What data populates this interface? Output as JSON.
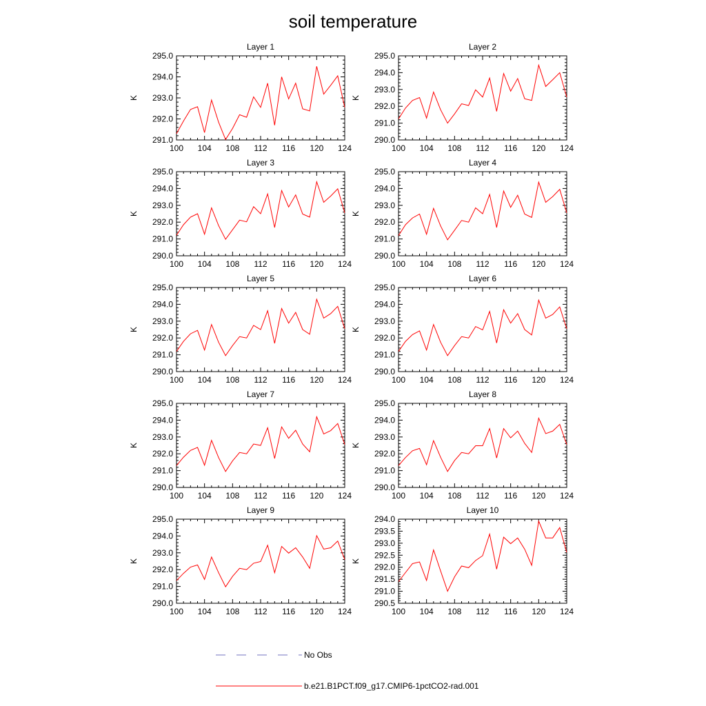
{
  "figure": {
    "title": "soil temperature"
  },
  "legend": [
    {
      "label": "No Obs",
      "color": "#7070c0",
      "style": "dashed"
    },
    {
      "label": "b.e21.B1PCT.f09_g17.CMIP6-1pctCO2-rad.001",
      "color": "#ff0000",
      "style": "solid"
    }
  ],
  "chart_data": [
    {
      "type": "line",
      "title": "Layer 1",
      "ylabel": "K",
      "xlim": [
        100,
        124
      ],
      "ylim": [
        291.0,
        295.0
      ],
      "xticks": [
        "100",
        "104",
        "108",
        "112",
        "116",
        "120",
        "124"
      ],
      "yticks": [
        "291.0",
        "292.0",
        "293.0",
        "294.0",
        "295.0"
      ],
      "x": [
        100,
        101,
        102,
        103,
        104,
        105,
        106,
        107,
        108,
        109,
        110,
        111,
        112,
        113,
        114,
        115,
        116,
        117,
        118,
        119,
        120,
        121,
        122,
        123,
        124
      ],
      "series": [
        {
          "name": "b.e21.B1PCT.f09_g17.CMIP6-1pctCO2-rad.001",
          "color": "#ff0000",
          "values": [
            291.3,
            291.9,
            292.45,
            292.58,
            291.35,
            292.9,
            291.85,
            291.02,
            291.55,
            292.2,
            292.08,
            293.05,
            292.55,
            293.7,
            291.7,
            294.0,
            292.95,
            293.7,
            292.48,
            292.38,
            294.5,
            293.18,
            293.6,
            294.05,
            292.55
          ]
        }
      ]
    },
    {
      "type": "line",
      "title": "Layer 2",
      "ylabel": "K",
      "xlim": [
        100,
        124
      ],
      "ylim": [
        290.0,
        295.0
      ],
      "xticks": [
        "100",
        "104",
        "108",
        "112",
        "116",
        "120",
        "124"
      ],
      "yticks": [
        "290.0",
        "291.0",
        "292.0",
        "293.0",
        "294.0",
        "295.0"
      ],
      "x": [
        100,
        101,
        102,
        103,
        104,
        105,
        106,
        107,
        108,
        109,
        110,
        111,
        112,
        113,
        114,
        115,
        116,
        117,
        118,
        119,
        120,
        121,
        122,
        123,
        124
      ],
      "series": [
        {
          "name": "b.e21.B1PCT.f09_g17.CMIP6-1pctCO2-rad.001",
          "color": "#ff0000",
          "values": [
            291.25,
            291.9,
            292.35,
            292.52,
            291.3,
            292.85,
            291.8,
            291.0,
            291.55,
            292.15,
            292.05,
            292.98,
            292.55,
            293.68,
            291.7,
            293.95,
            292.9,
            293.65,
            292.45,
            292.35,
            294.45,
            293.18,
            293.58,
            294.0,
            292.55
          ]
        }
      ]
    },
    {
      "type": "line",
      "title": "Layer 3",
      "ylabel": "K",
      "xlim": [
        100,
        124
      ],
      "ylim": [
        290.0,
        295.0
      ],
      "xticks": [
        "100",
        "104",
        "108",
        "112",
        "116",
        "120",
        "124"
      ],
      "yticks": [
        "290.0",
        "291.0",
        "292.0",
        "293.0",
        "294.0",
        "295.0"
      ],
      "x": [
        100,
        101,
        102,
        103,
        104,
        105,
        106,
        107,
        108,
        109,
        110,
        111,
        112,
        113,
        114,
        115,
        116,
        117,
        118,
        119,
        120,
        121,
        122,
        123,
        124
      ],
      "series": [
        {
          "name": "b.e21.B1PCT.f09_g17.CMIP6-1pctCO2-rad.001",
          "color": "#ff0000",
          "values": [
            291.22,
            291.85,
            292.3,
            292.5,
            291.28,
            292.85,
            291.8,
            290.98,
            291.55,
            292.12,
            292.02,
            292.92,
            292.5,
            293.68,
            291.68,
            293.88,
            292.9,
            293.62,
            292.48,
            292.3,
            294.4,
            293.18,
            293.55,
            293.98,
            292.55
          ]
        }
      ]
    },
    {
      "type": "line",
      "title": "Layer 4",
      "ylabel": "K",
      "xlim": [
        100,
        124
      ],
      "ylim": [
        290.0,
        295.0
      ],
      "xticks": [
        "100",
        "104",
        "108",
        "112",
        "116",
        "120",
        "124"
      ],
      "yticks": [
        "290.0",
        "291.0",
        "292.0",
        "293.0",
        "294.0",
        "295.0"
      ],
      "x": [
        100,
        101,
        102,
        103,
        104,
        105,
        106,
        107,
        108,
        109,
        110,
        111,
        112,
        113,
        114,
        115,
        116,
        117,
        118,
        119,
        120,
        121,
        122,
        123,
        124
      ],
      "series": [
        {
          "name": "b.e21.B1PCT.f09_g17.CMIP6-1pctCO2-rad.001",
          "color": "#ff0000",
          "values": [
            291.2,
            291.85,
            292.25,
            292.48,
            291.28,
            292.82,
            291.78,
            290.95,
            291.52,
            292.1,
            292.0,
            292.85,
            292.5,
            293.65,
            291.68,
            293.85,
            292.88,
            293.6,
            292.48,
            292.28,
            294.38,
            293.18,
            293.52,
            293.95,
            292.55
          ]
        }
      ]
    },
    {
      "type": "line",
      "title": "Layer 5",
      "ylabel": "K",
      "xlim": [
        100,
        124
      ],
      "ylim": [
        290.0,
        295.0
      ],
      "xticks": [
        "100",
        "104",
        "108",
        "112",
        "116",
        "120",
        "124"
      ],
      "yticks": [
        "290.0",
        "291.0",
        "292.0",
        "293.0",
        "294.0",
        "295.0"
      ],
      "x": [
        100,
        101,
        102,
        103,
        104,
        105,
        106,
        107,
        108,
        109,
        110,
        111,
        112,
        113,
        114,
        115,
        116,
        117,
        118,
        119,
        120,
        121,
        122,
        123,
        124
      ],
      "series": [
        {
          "name": "b.e21.B1PCT.f09_g17.CMIP6-1pctCO2-rad.001",
          "color": "#ff0000",
          "values": [
            291.2,
            291.8,
            292.25,
            292.45,
            291.28,
            292.8,
            291.75,
            290.95,
            291.55,
            292.08,
            292.0,
            292.75,
            292.5,
            293.62,
            291.68,
            293.75,
            292.88,
            293.52,
            292.5,
            292.22,
            294.3,
            293.18,
            293.45,
            293.88,
            292.55
          ]
        }
      ]
    },
    {
      "type": "line",
      "title": "Layer 6",
      "ylabel": "K",
      "xlim": [
        100,
        124
      ],
      "ylim": [
        290.0,
        295.0
      ],
      "xticks": [
        "100",
        "104",
        "108",
        "112",
        "116",
        "120",
        "124"
      ],
      "yticks": [
        "290.0",
        "291.0",
        "292.0",
        "293.0",
        "294.0",
        "295.0"
      ],
      "x": [
        100,
        101,
        102,
        103,
        104,
        105,
        106,
        107,
        108,
        109,
        110,
        111,
        112,
        113,
        114,
        115,
        116,
        117,
        118,
        119,
        120,
        121,
        122,
        123,
        124
      ],
      "series": [
        {
          "name": "b.e21.B1PCT.f09_g17.CMIP6-1pctCO2-rad.001",
          "color": "#ff0000",
          "values": [
            291.2,
            291.8,
            292.2,
            292.42,
            291.28,
            292.8,
            291.75,
            290.95,
            291.55,
            292.08,
            292.0,
            292.68,
            292.48,
            293.58,
            291.7,
            293.68,
            292.88,
            293.45,
            292.5,
            292.18,
            294.25,
            293.18,
            293.4,
            293.85,
            292.55
          ]
        }
      ]
    },
    {
      "type": "line",
      "title": "Layer 7",
      "ylabel": "K",
      "xlim": [
        100,
        124
      ],
      "ylim": [
        290.0,
        295.0
      ],
      "xticks": [
        "100",
        "104",
        "108",
        "112",
        "116",
        "120",
        "124"
      ],
      "yticks": [
        "290.0",
        "291.0",
        "292.0",
        "293.0",
        "294.0",
        "295.0"
      ],
      "x": [
        100,
        101,
        102,
        103,
        104,
        105,
        106,
        107,
        108,
        109,
        110,
        111,
        112,
        113,
        114,
        115,
        116,
        117,
        118,
        119,
        120,
        121,
        122,
        123,
        124
      ],
      "series": [
        {
          "name": "b.e21.B1PCT.f09_g17.CMIP6-1pctCO2-rad.001",
          "color": "#ff0000",
          "values": [
            291.3,
            291.8,
            292.2,
            292.38,
            291.32,
            292.8,
            291.78,
            290.95,
            291.58,
            292.08,
            292.0,
            292.58,
            292.5,
            293.55,
            291.72,
            293.6,
            292.92,
            293.4,
            292.58,
            292.12,
            294.2,
            293.18,
            293.38,
            293.8,
            292.55
          ]
        }
      ]
    },
    {
      "type": "line",
      "title": "Layer 8",
      "ylabel": "K",
      "xlim": [
        100,
        124
      ],
      "ylim": [
        290.0,
        295.0
      ],
      "xticks": [
        "100",
        "104",
        "108",
        "112",
        "116",
        "120",
        "124"
      ],
      "yticks": [
        "290.0",
        "291.0",
        "292.0",
        "293.0",
        "294.0",
        "295.0"
      ],
      "x": [
        100,
        101,
        102,
        103,
        104,
        105,
        106,
        107,
        108,
        109,
        110,
        111,
        112,
        113,
        114,
        115,
        116,
        117,
        118,
        119,
        120,
        121,
        122,
        123,
        124
      ],
      "series": [
        {
          "name": "b.e21.B1PCT.f09_g17.CMIP6-1pctCO2-rad.001",
          "color": "#ff0000",
          "values": [
            291.3,
            291.78,
            292.18,
            292.32,
            291.35,
            292.78,
            291.8,
            290.95,
            291.6,
            292.08,
            292.0,
            292.48,
            292.48,
            293.5,
            291.75,
            293.5,
            292.95,
            293.35,
            292.62,
            292.08,
            294.12,
            293.2,
            293.35,
            293.75,
            292.55
          ]
        }
      ]
    },
    {
      "type": "line",
      "title": "Layer 9",
      "ylabel": "K",
      "xlim": [
        100,
        124
      ],
      "ylim": [
        290.0,
        295.0
      ],
      "xticks": [
        "100",
        "104",
        "108",
        "112",
        "116",
        "120",
        "124"
      ],
      "yticks": [
        "290.0",
        "291.0",
        "292.0",
        "293.0",
        "294.0",
        "295.0"
      ],
      "x": [
        100,
        101,
        102,
        103,
        104,
        105,
        106,
        107,
        108,
        109,
        110,
        111,
        112,
        113,
        114,
        115,
        116,
        117,
        118,
        119,
        120,
        121,
        122,
        123,
        124
      ],
      "series": [
        {
          "name": "b.e21.B1PCT.f09_g17.CMIP6-1pctCO2-rad.001",
          "color": "#ff0000",
          "values": [
            291.35,
            291.78,
            292.15,
            292.28,
            291.42,
            292.75,
            291.82,
            290.98,
            291.6,
            292.08,
            292.0,
            292.38,
            292.48,
            293.45,
            291.82,
            293.38,
            292.98,
            293.3,
            292.75,
            292.08,
            294.02,
            293.22,
            293.3,
            293.7,
            292.6
          ]
        }
      ]
    },
    {
      "type": "line",
      "title": "Layer 10",
      "ylabel": "K",
      "xlim": [
        100,
        124
      ],
      "ylim": [
        290.5,
        294.0
      ],
      "xticks": [
        "100",
        "104",
        "108",
        "112",
        "116",
        "120",
        "124"
      ],
      "yticks": [
        "290.5",
        "291.0",
        "291.5",
        "292.0",
        "292.5",
        "293.0",
        "293.5",
        "294.0"
      ],
      "x": [
        100,
        101,
        102,
        103,
        104,
        105,
        106,
        107,
        108,
        109,
        110,
        111,
        112,
        113,
        114,
        115,
        116,
        117,
        118,
        119,
        120,
        121,
        122,
        123,
        124
      ],
      "series": [
        {
          "name": "b.e21.B1PCT.f09_g17.CMIP6-1pctCO2-rad.001",
          "color": "#ff0000",
          "values": [
            291.4,
            291.78,
            292.15,
            292.22,
            291.45,
            292.72,
            291.85,
            291.0,
            291.6,
            292.05,
            291.98,
            292.28,
            292.48,
            293.38,
            291.92,
            293.25,
            292.98,
            293.22,
            292.75,
            292.08,
            293.92,
            293.22,
            293.22,
            293.65,
            292.62
          ]
        }
      ]
    }
  ]
}
